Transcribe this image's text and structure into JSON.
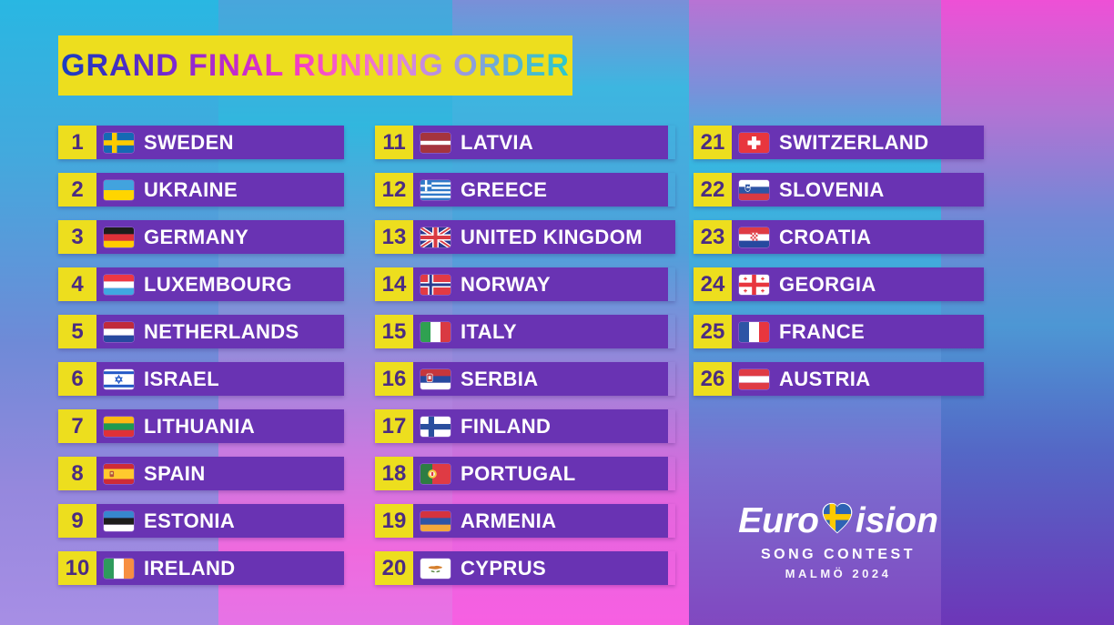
{
  "title": "GRAND FINAL RUNNING ORDER",
  "colors": {
    "panel_yellow": "#EDDE1E",
    "bar_purple": "#6933B3",
    "number_text_purple": "#4B2C82",
    "country_text": "#FFFFFF",
    "title_gradient": [
      "#1B3FC0",
      "#7C2AD0",
      "#C32BCB",
      "#F23CC3",
      "#DC86DC",
      "#A795E2",
      "#2BC8CB"
    ],
    "background_stripes_top": [
      "#29B7E2",
      "#48A6DC",
      "#7A8FD8",
      "#B873D4",
      "#EE50D6"
    ],
    "background_stripes_bottom": [
      "#A78EE5",
      "#E673E6",
      "#F75FE2",
      "#8148C0",
      "#6D36B8"
    ]
  },
  "entries": [
    {
      "order": 1,
      "country": "SWEDEN",
      "flag": "sweden"
    },
    {
      "order": 2,
      "country": "UKRAINE",
      "flag": "ukraine"
    },
    {
      "order": 3,
      "country": "GERMANY",
      "flag": "germany"
    },
    {
      "order": 4,
      "country": "LUXEMBOURG",
      "flag": "luxembourg"
    },
    {
      "order": 5,
      "country": "NETHERLANDS",
      "flag": "netherlands"
    },
    {
      "order": 6,
      "country": "ISRAEL",
      "flag": "israel"
    },
    {
      "order": 7,
      "country": "LITHUANIA",
      "flag": "lithuania"
    },
    {
      "order": 8,
      "country": "SPAIN",
      "flag": "spain"
    },
    {
      "order": 9,
      "country": "ESTONIA",
      "flag": "estonia"
    },
    {
      "order": 10,
      "country": "IRELAND",
      "flag": "ireland"
    },
    {
      "order": 11,
      "country": "LATVIA",
      "flag": "latvia"
    },
    {
      "order": 12,
      "country": "GREECE",
      "flag": "greece"
    },
    {
      "order": 13,
      "country": "UNITED KINGDOM",
      "flag": "united-kingdom"
    },
    {
      "order": 14,
      "country": "NORWAY",
      "flag": "norway"
    },
    {
      "order": 15,
      "country": "ITALY",
      "flag": "italy"
    },
    {
      "order": 16,
      "country": "SERBIA",
      "flag": "serbia"
    },
    {
      "order": 17,
      "country": "FINLAND",
      "flag": "finland"
    },
    {
      "order": 18,
      "country": "PORTUGAL",
      "flag": "portugal"
    },
    {
      "order": 19,
      "country": "ARMENIA",
      "flag": "armenia"
    },
    {
      "order": 20,
      "country": "CYPRUS",
      "flag": "cyprus"
    },
    {
      "order": 21,
      "country": "SWITZERLAND",
      "flag": "switzerland"
    },
    {
      "order": 22,
      "country": "SLOVENIA",
      "flag": "slovenia"
    },
    {
      "order": 23,
      "country": "CROATIA",
      "flag": "croatia"
    },
    {
      "order": 24,
      "country": "GEORGIA",
      "flag": "georgia"
    },
    {
      "order": 25,
      "country": "FRANCE",
      "flag": "france"
    },
    {
      "order": 26,
      "country": "AUSTRIA",
      "flag": "austria"
    }
  ],
  "logo": {
    "word_left": "Euro",
    "word_right": "ision",
    "heart_icon": "swedish-flag-heart-icon",
    "line2": "SONG CONTEST",
    "line3": "MALMÖ 2024"
  }
}
